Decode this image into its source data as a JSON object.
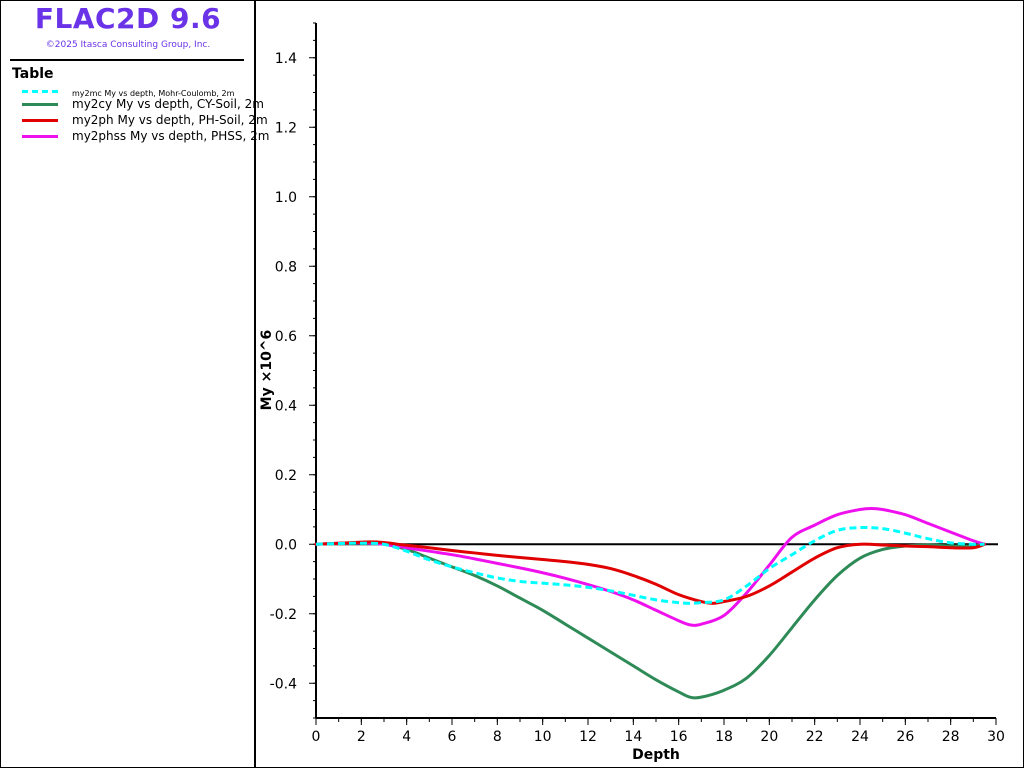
{
  "app": {
    "title": "FLAC2D 9.6",
    "copyright": "©2025 Itasca Consulting Group, Inc."
  },
  "legend": {
    "heading": "Table",
    "items": [
      {
        "label": "my2mc My vs depth, Mohr-Coulomb, 2m",
        "color": "#00ffff",
        "style": "dashed"
      },
      {
        "label": "my2cy My vs depth, CY-Soil, 2m",
        "color": "#2e8b57",
        "style": "solid"
      },
      {
        "label": "my2ph My vs depth, PH-Soil, 2m",
        "color": "#e00000",
        "style": "solid"
      },
      {
        "label": "my2phss My vs depth, PHSS, 2m",
        "color": "#ee11ee",
        "style": "solid"
      }
    ]
  },
  "chart_data": {
    "type": "line",
    "xlabel": "Depth",
    "ylabel": "My ×10^6",
    "xlim": [
      0,
      30
    ],
    "ylim": [
      -0.5,
      1.5
    ],
    "x_ticks": [
      0,
      2,
      4,
      6,
      8,
      10,
      12,
      14,
      16,
      18,
      20,
      22,
      24,
      26,
      28,
      30
    ],
    "x_tick_labels": [
      "0",
      "2",
      "4",
      "6",
      "8",
      "10",
      "12",
      "14",
      "16",
      "18",
      "20",
      "22",
      "24",
      "26",
      "28",
      "30"
    ],
    "y_ticks": [
      -0.4,
      -0.2,
      0,
      0.2,
      0.4,
      0.6,
      0.8,
      1.0,
      1.2,
      1.4
    ],
    "y_tick_labels": [
      "-0.4",
      "-0.2",
      "0.0",
      "0.2",
      "0.4",
      "0.6",
      "0.8",
      "1.0",
      "1.2",
      "1.4"
    ],
    "zero_line": true,
    "grid": false,
    "series": [
      {
        "name": "my2mc My vs depth, Mohr-Coulomb, 2m",
        "color": "#00ffff",
        "style": "dashed",
        "x": [
          0,
          1,
          2,
          3,
          4,
          5,
          6,
          7,
          8,
          9,
          10,
          11,
          12,
          13,
          14,
          15,
          16,
          16.5,
          17,
          18,
          19,
          20,
          21,
          22,
          23,
          24,
          25,
          26,
          27,
          28,
          29,
          29.5
        ],
        "y": [
          0,
          0.002,
          0.003,
          0.0,
          -0.02,
          -0.045,
          -0.065,
          -0.082,
          -0.097,
          -0.107,
          -0.112,
          -0.117,
          -0.124,
          -0.134,
          -0.147,
          -0.16,
          -0.168,
          -0.17,
          -0.168,
          -0.16,
          -0.12,
          -0.07,
          -0.03,
          0.01,
          0.04,
          0.048,
          0.045,
          0.032,
          0.016,
          0.004,
          0.0,
          0.0
        ]
      },
      {
        "name": "my2cy My vs depth, CY-Soil, 2m",
        "color": "#2e8b57",
        "style": "solid",
        "x": [
          0,
          1,
          2,
          3,
          4,
          5,
          6,
          7,
          8,
          9,
          10,
          11,
          12,
          13,
          14,
          15,
          16,
          16.5,
          17,
          18,
          19,
          20,
          21,
          22,
          23,
          24,
          25,
          26,
          27,
          28,
          29,
          29.5
        ],
        "y": [
          0,
          0.002,
          0.003,
          0.0,
          -0.015,
          -0.04,
          -0.065,
          -0.09,
          -0.12,
          -0.155,
          -0.19,
          -0.23,
          -0.27,
          -0.31,
          -0.35,
          -0.39,
          -0.425,
          -0.44,
          -0.44,
          -0.42,
          -0.385,
          -0.32,
          -0.24,
          -0.16,
          -0.09,
          -0.04,
          -0.015,
          -0.005,
          -0.002,
          -0.005,
          -0.005,
          0.0
        ]
      },
      {
        "name": "my2ph My vs depth, PH-Soil, 2m",
        "color": "#e00000",
        "style": "solid",
        "x": [
          0,
          1,
          2,
          2.5,
          3,
          4,
          5,
          6,
          7,
          8,
          9,
          10,
          11,
          12,
          13,
          14,
          15,
          16,
          17,
          17.5,
          18,
          19,
          20,
          21,
          22,
          23,
          24,
          25,
          26,
          27,
          28,
          29,
          29.5
        ],
        "y": [
          0,
          0.003,
          0.006,
          0.007,
          0.005,
          -0.003,
          -0.01,
          -0.018,
          -0.025,
          -0.032,
          -0.038,
          -0.044,
          -0.05,
          -0.058,
          -0.07,
          -0.09,
          -0.115,
          -0.145,
          -0.165,
          -0.17,
          -0.165,
          -0.15,
          -0.12,
          -0.08,
          -0.04,
          -0.01,
          0.0,
          -0.002,
          -0.005,
          -0.007,
          -0.01,
          -0.01,
          0.0
        ]
      },
      {
        "name": "my2phss My vs depth, PHSS, 2m",
        "color": "#ee11ee",
        "style": "solid",
        "x": [
          0,
          1,
          2,
          3,
          4,
          5,
          6,
          7,
          8,
          9,
          10,
          11,
          12,
          13,
          14,
          15,
          16,
          16.5,
          17,
          18,
          19,
          20,
          21,
          22,
          23,
          24,
          24.5,
          25,
          26,
          27,
          28,
          29,
          29.5
        ],
        "y": [
          0,
          0.003,
          0.004,
          0.0,
          -0.01,
          -0.02,
          -0.03,
          -0.042,
          -0.055,
          -0.068,
          -0.082,
          -0.098,
          -0.116,
          -0.136,
          -0.16,
          -0.19,
          -0.22,
          -0.232,
          -0.23,
          -0.205,
          -0.14,
          -0.06,
          0.02,
          0.055,
          0.085,
          0.1,
          0.103,
          0.1,
          0.085,
          0.06,
          0.035,
          0.01,
          0.0
        ]
      }
    ]
  }
}
